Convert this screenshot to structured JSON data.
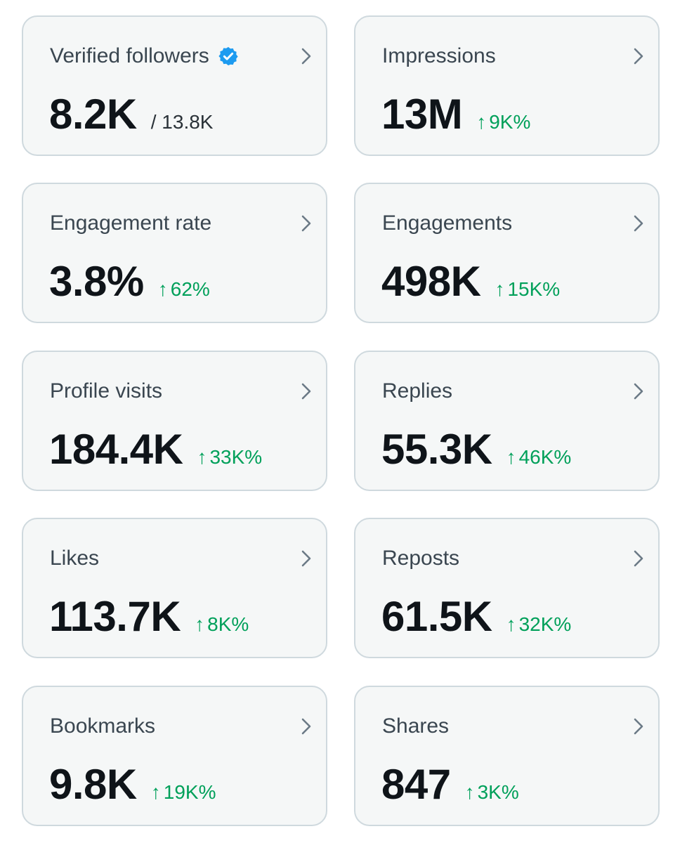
{
  "colors": {
    "card_background": "#f5f7f7",
    "card_border": "#cfd9de",
    "title_text": "#3a4650",
    "value_text": "#0f1419",
    "positive_change": "#00a05a",
    "verified_badge": "#1d9bf0",
    "chevron": "#6b7a86"
  },
  "icons": {
    "verified": "verified-badge-icon",
    "chevron": "chevron-right-icon",
    "change_arrow": "↑"
  },
  "cards": [
    {
      "title": "Verified followers",
      "value": "8.2K",
      "total": "/ 13.8K"
    },
    {
      "title": "Impressions",
      "value": "13M",
      "change": "9K%"
    },
    {
      "title": "Engagement rate",
      "value": "3.8%",
      "change": "62%"
    },
    {
      "title": "Engagements",
      "value": "498K",
      "change": "15K%"
    },
    {
      "title": "Profile visits",
      "value": "184.4K",
      "change": "33K%"
    },
    {
      "title": "Replies",
      "value": "55.3K",
      "change": "46K%"
    },
    {
      "title": "Likes",
      "value": "113.7K",
      "change": "8K%"
    },
    {
      "title": "Reposts",
      "value": "61.5K",
      "change": "32K%"
    },
    {
      "title": "Bookmarks",
      "value": "9.8K",
      "change": "19K%"
    },
    {
      "title": "Shares",
      "value": "847",
      "change": "3K%"
    }
  ]
}
